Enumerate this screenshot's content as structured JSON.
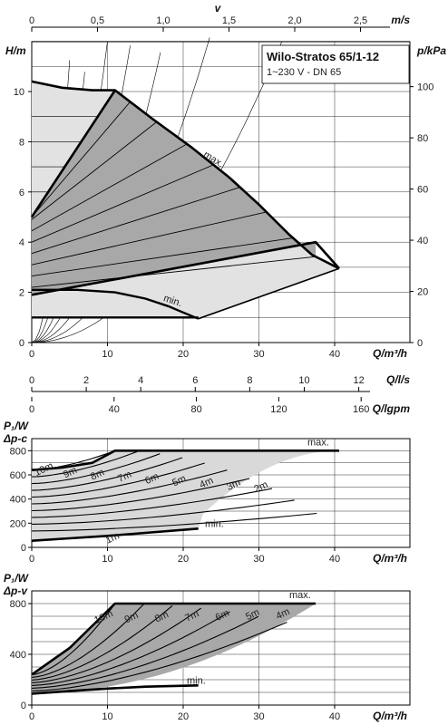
{
  "chart_data": [
    {
      "type": "area",
      "title": "Wilo-Stratos 65/1-12",
      "subtitle": "1~230 V - DN 65",
      "xlabel": "Q/m³/h",
      "ylabel": "H/m",
      "y2label": "p/kPa",
      "top_label": "v",
      "top_unit": "m/s",
      "xlim": [
        0,
        50
      ],
      "ylim": [
        0,
        12
      ],
      "x_ticks": [
        "0",
        "10",
        "20",
        "30",
        "40"
      ],
      "y_ticks": [
        "0",
        "2",
        "4",
        "6",
        "8",
        "10"
      ],
      "y2_ticks": [
        "0",
        "20",
        "40",
        "60",
        "80",
        "100"
      ],
      "v_ticks": [
        "0",
        "0,5",
        "1,0",
        "1,5",
        "2,0",
        "2,5"
      ],
      "curve_labels": {
        "max": "max.",
        "min": "min."
      },
      "max_curve": {
        "x": [
          0,
          4,
          8,
          11,
          16,
          21,
          26,
          30,
          34,
          37,
          40.6
        ],
        "y": [
          10.4,
          10.15,
          10.05,
          10.05,
          8.9,
          7.8,
          6.6,
          5.5,
          4.3,
          3.5,
          2.95
        ]
      },
      "min_curve": {
        "x": [
          0,
          6,
          11,
          15,
          18,
          20,
          22
        ],
        "y": [
          2.1,
          2.1,
          2.0,
          1.75,
          1.45,
          1.2,
          0.95
        ]
      },
      "speed_lines": {
        "left_y": [
          2.2,
          2.7,
          3.3,
          3.85,
          4.4,
          4.95
        ],
        "right_x": [
          37.5,
          34.5,
          31,
          27.5,
          24,
          20.5,
          16.5,
          13
        ]
      }
    },
    {
      "type": "line",
      "title": "",
      "unit_labels": [
        "Q/l/s",
        "Q/lgpm"
      ],
      "ls_ticks": [
        "0",
        "2",
        "4",
        "6",
        "8",
        "10",
        "12"
      ],
      "lgpm_ticks": [
        "0",
        "40",
        "80",
        "120",
        "160"
      ]
    },
    {
      "type": "line",
      "title": "",
      "ylabel_top": "P₁/W",
      "ylabel_bottom": "Δp-c",
      "xlabel": "Q/m³/h",
      "xlim": [
        0,
        50
      ],
      "ylim": [
        0,
        900
      ],
      "x_ticks": [
        "0",
        "10",
        "20",
        "30",
        "40"
      ],
      "y_ticks": [
        "0",
        "200",
        "400",
        "600",
        "800"
      ],
      "series": [
        {
          "name": "max.",
          "x": [
            0,
            4,
            8,
            11,
            40.6
          ],
          "y": [
            640,
            660,
            700,
            800,
            800
          ]
        },
        {
          "name": "min.",
          "x": [
            0,
            5,
            10,
            15,
            22
          ],
          "y": [
            55,
            75,
            95,
            120,
            155
          ]
        }
      ],
      "curve_labels": [
        "10m",
        "9m",
        "8m",
        "7m",
        "6m",
        "5m",
        "4m",
        "3m",
        "2m",
        "1m"
      ]
    },
    {
      "type": "line",
      "title": "",
      "ylabel_top": "P₁/W",
      "ylabel_bottom": "Δp-v",
      "xlabel": "Q/m³/h",
      "xlim": [
        0,
        50
      ],
      "ylim": [
        0,
        900
      ],
      "x_ticks": [
        "0",
        "10",
        "20",
        "30",
        "40"
      ],
      "y_ticks": [
        "0",
        "400",
        "800"
      ],
      "series": [
        {
          "name": "max.",
          "x": [
            0,
            5,
            11,
            37.5
          ],
          "y": [
            240,
            450,
            800,
            800
          ]
        },
        {
          "name": "min.",
          "x": [
            0,
            5,
            10,
            15,
            22
          ],
          "y": [
            90,
            110,
            130,
            145,
            155
          ]
        }
      ],
      "curve_labels": [
        "10m",
        "9m",
        "8m",
        "7m",
        "6m",
        "5m",
        "4m"
      ]
    }
  ]
}
